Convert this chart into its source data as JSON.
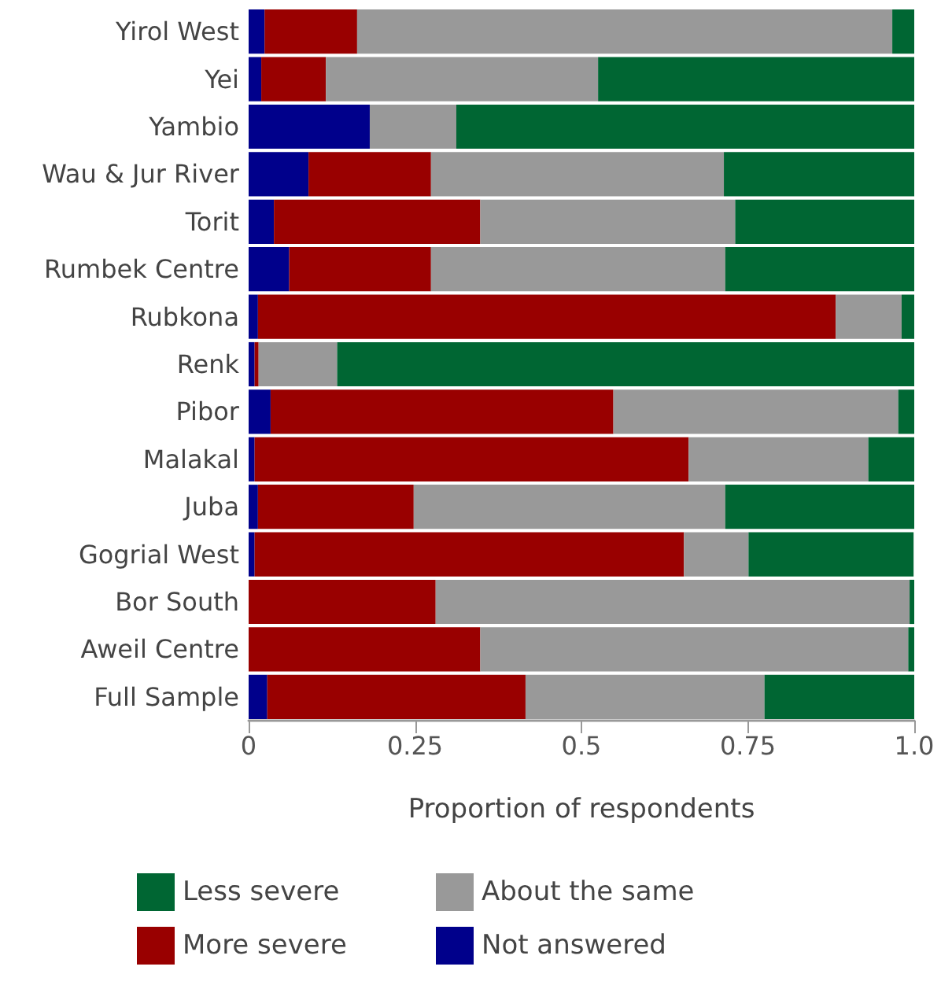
{
  "chart_data": {
    "type": "bar",
    "orientation": "horizontal",
    "stacked": true,
    "xlabel": "Proportion of respondents",
    "categories": [
      "Yirol West",
      "Yei",
      "Yambio",
      "Wau & Jur River",
      "Torit",
      "Rumbek Centre",
      "Rubkona",
      "Renk",
      "Pibor",
      "Malakal",
      "Juba",
      "Gogrial West",
      "Bor South",
      "Aweil Centre",
      "Full Sample"
    ],
    "series": [
      {
        "name": "Not answered",
        "color": "#00008b",
        "values": [
          0.024,
          0.019,
          0.182,
          0.09,
          0.038,
          0.061,
          0.014,
          0.009,
          0.033,
          0.009,
          0.014,
          0.009,
          0,
          0,
          0.028
        ]
      },
      {
        "name": "More severe",
        "color": "#990000",
        "values": [
          0.139,
          0.097,
          0,
          0.184,
          0.31,
          0.213,
          0.868,
          0.006,
          0.515,
          0.652,
          0.234,
          0.645,
          0.281,
          0.348,
          0.388
        ]
      },
      {
        "name": "About the same",
        "color": "#999999",
        "values": [
          0.804,
          0.409,
          0.13,
          0.44,
          0.383,
          0.442,
          0.099,
          0.118,
          0.428,
          0.27,
          0.468,
          0.097,
          0.712,
          0.643,
          0.359
        ]
      },
      {
        "name": "Less severe",
        "color": "#006633",
        "values": [
          0.033,
          0.475,
          0.688,
          0.286,
          0.27,
          0.284,
          0.019,
          0.868,
          0.024,
          0.069,
          0.284,
          0.248,
          0.007,
          0.009,
          0.225
        ]
      }
    ],
    "xlim": [
      0,
      1
    ],
    "xticks": [
      0,
      0.25,
      0.5,
      0.75,
      {
        "value": 1,
        "label": "1.0"
      }
    ],
    "grid": false,
    "legend": "bottom"
  }
}
